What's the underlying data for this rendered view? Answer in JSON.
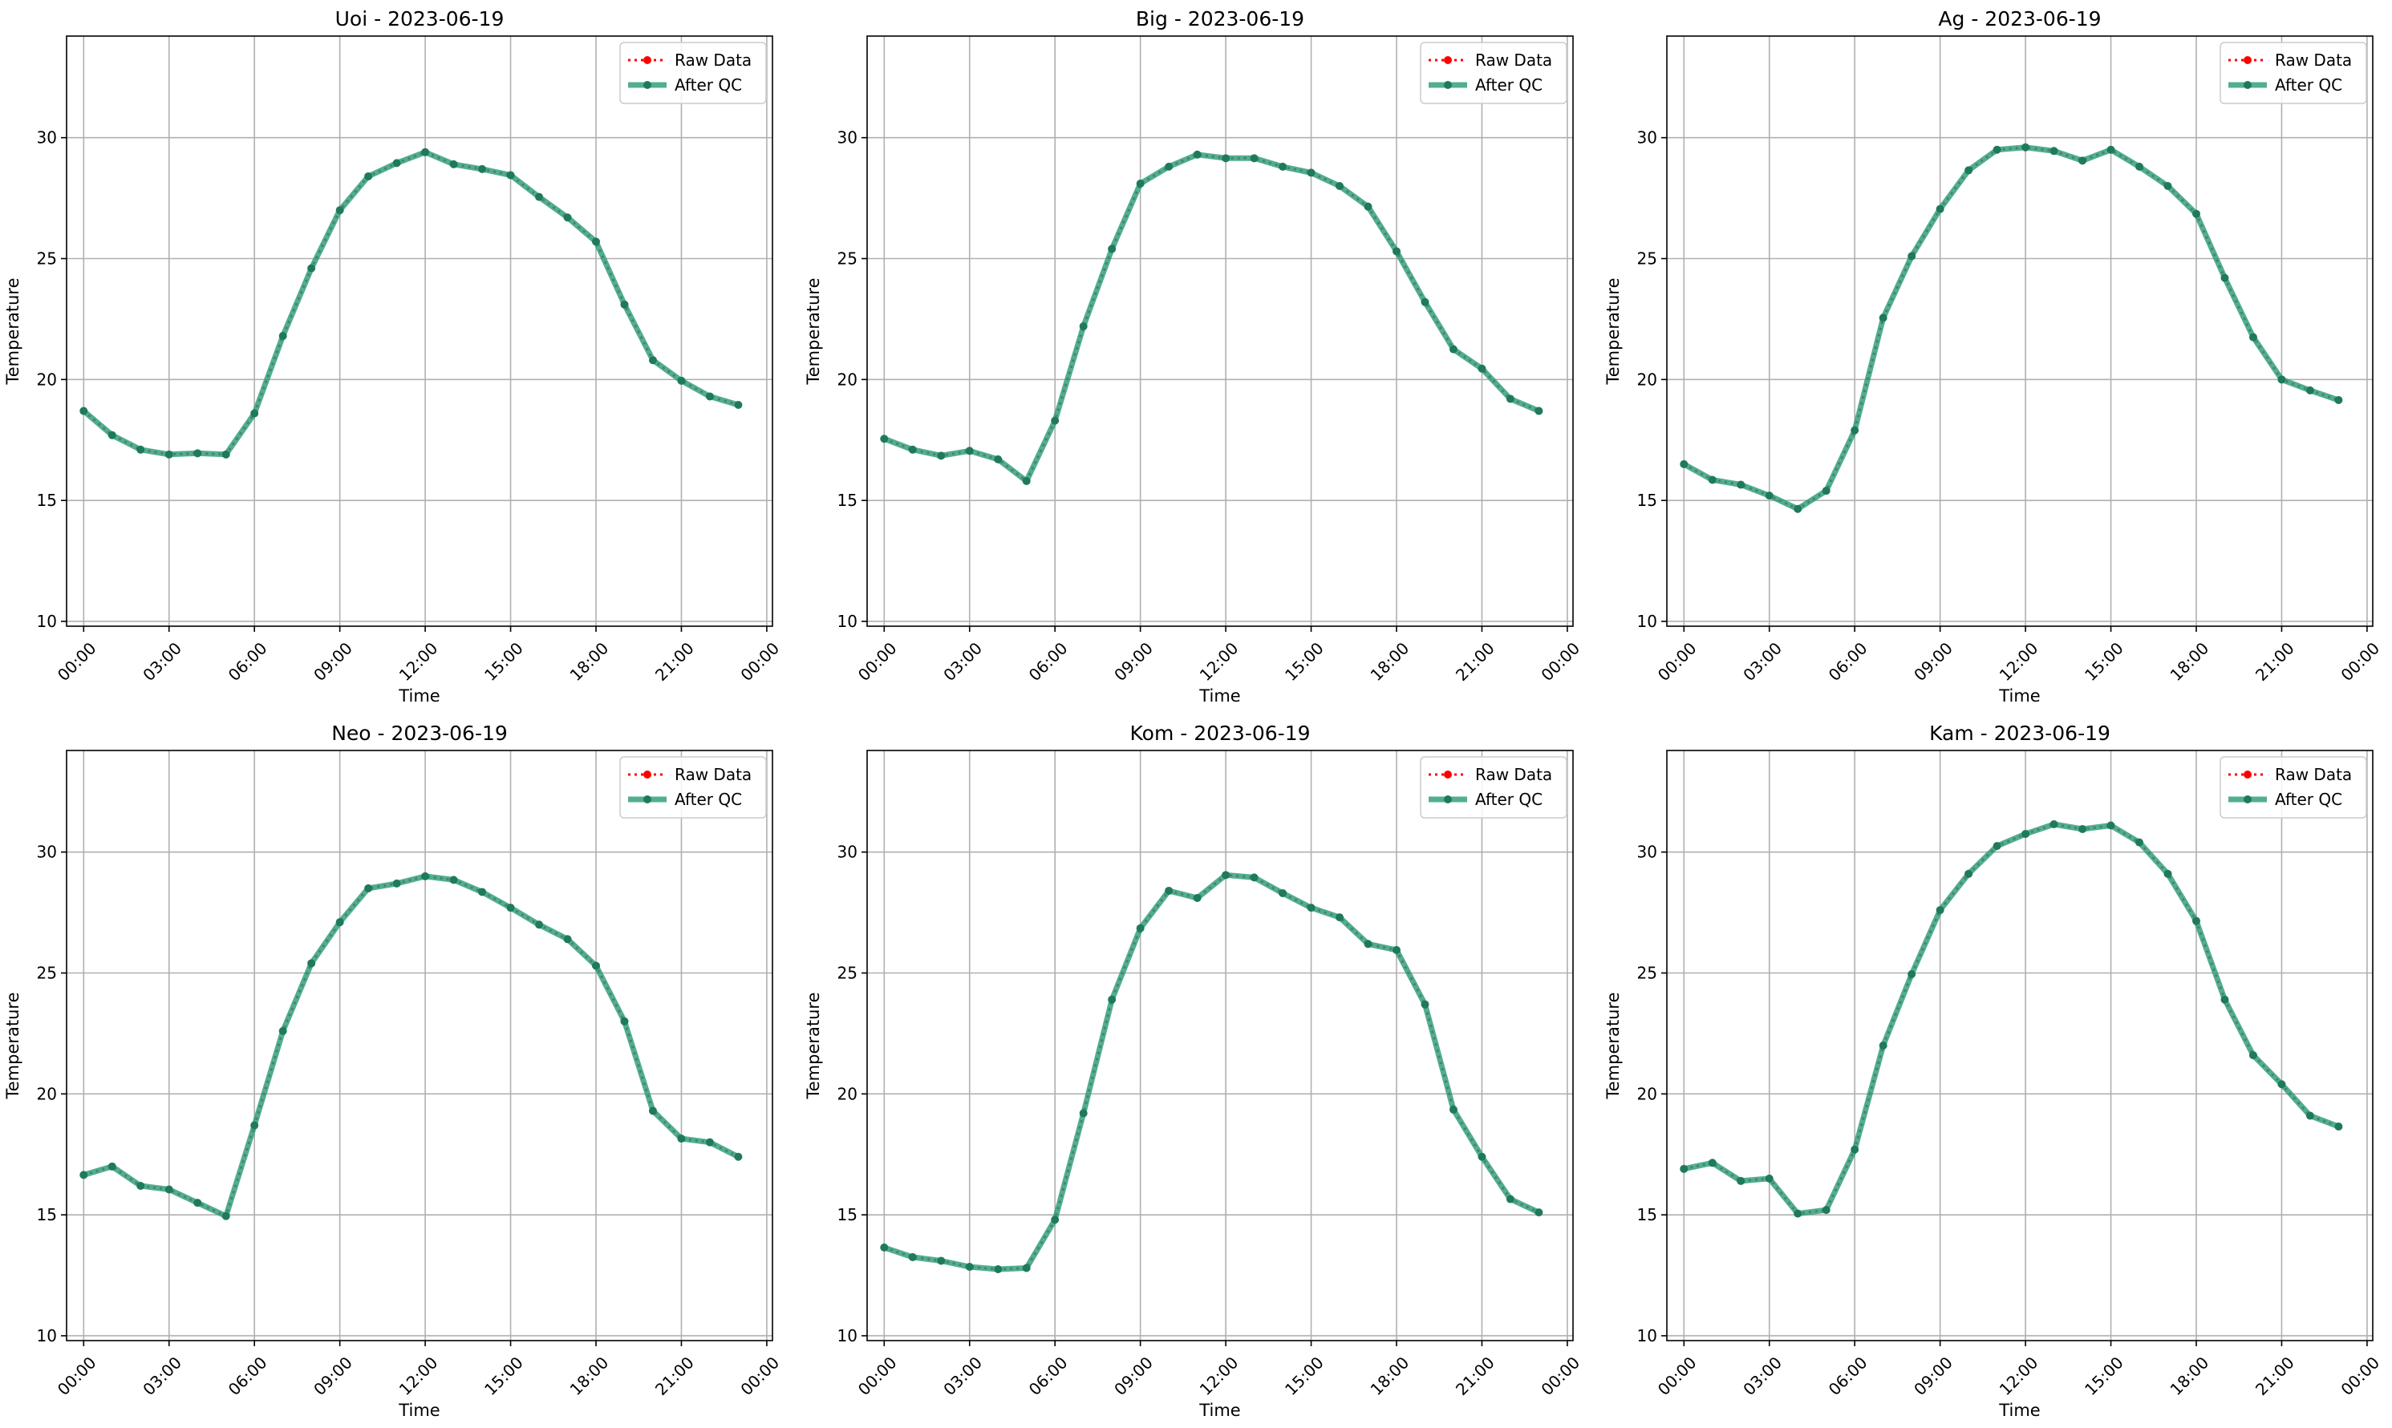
{
  "colors": {
    "raw": "#ff0000",
    "after_qc": "#2a9d78",
    "after_qc_marker": "#1f7a5c",
    "grid": "#b0b0b0",
    "axes": "#000000",
    "legend_border": "#cccccc"
  },
  "legend": {
    "placement": "upper right",
    "entries": [
      "Raw Data",
      "After QC"
    ]
  },
  "chart_data": [
    {
      "type": "line",
      "title": "Uoi - 2023-06-19",
      "xlabel": "Time",
      "ylabel": "Temperature",
      "x_hours": [
        0,
        1,
        2,
        3,
        4,
        5,
        6,
        7,
        8,
        9,
        10,
        11,
        12,
        13,
        14,
        15,
        16,
        17,
        18,
        19,
        20,
        21,
        22,
        23
      ],
      "xlim_hours": [
        -0.6,
        24.2
      ],
      "ylim": [
        9.8,
        34.2
      ],
      "xticks": [
        "00:00",
        "03:00",
        "06:00",
        "09:00",
        "12:00",
        "15:00",
        "18:00",
        "21:00",
        "00:00"
      ],
      "yticks": [
        "10",
        "15",
        "20",
        "25",
        "30"
      ],
      "grid": true,
      "legend_placement": "upper right",
      "series": [
        {
          "name": "Raw Data",
          "style": "dotted",
          "values": [
            18.7,
            17.7,
            17.1,
            16.9,
            16.95,
            16.9,
            18.6,
            21.8,
            24.6,
            27.0,
            28.4,
            28.95,
            29.4,
            28.9,
            28.7,
            28.45,
            27.55,
            26.7,
            25.7,
            23.1,
            20.8,
            19.95,
            19.3,
            18.95
          ]
        },
        {
          "name": "After QC",
          "style": "solid",
          "values": [
            18.7,
            17.7,
            17.1,
            16.9,
            16.95,
            16.9,
            18.6,
            21.8,
            24.6,
            27.0,
            28.4,
            28.95,
            29.4,
            28.9,
            28.7,
            28.45,
            27.55,
            26.7,
            25.7,
            23.1,
            20.8,
            19.95,
            19.3,
            18.95
          ]
        }
      ]
    },
    {
      "type": "line",
      "title": "Big - 2023-06-19",
      "xlabel": "Time",
      "ylabel": "Temperature",
      "x_hours": [
        0,
        1,
        2,
        3,
        4,
        5,
        6,
        7,
        8,
        9,
        10,
        11,
        12,
        13,
        14,
        15,
        16,
        17,
        18,
        19,
        20,
        21,
        22,
        23
      ],
      "xlim_hours": [
        -0.6,
        24.2
      ],
      "ylim": [
        9.8,
        34.2
      ],
      "xticks": [
        "00:00",
        "03:00",
        "06:00",
        "09:00",
        "12:00",
        "15:00",
        "18:00",
        "21:00",
        "00:00"
      ],
      "yticks": [
        "10",
        "15",
        "20",
        "25",
        "30"
      ],
      "grid": true,
      "legend_placement": "upper right",
      "series": [
        {
          "name": "Raw Data",
          "style": "dotted",
          "values": [
            17.55,
            17.1,
            16.85,
            17.05,
            16.7,
            15.8,
            18.3,
            22.2,
            25.4,
            28.1,
            28.8,
            29.3,
            29.15,
            29.15,
            28.8,
            28.55,
            28.0,
            27.15,
            25.3,
            23.2,
            21.25,
            20.45,
            19.2,
            18.7
          ]
        },
        {
          "name": "After QC",
          "style": "solid",
          "values": [
            17.55,
            17.1,
            16.85,
            17.05,
            16.7,
            15.8,
            18.3,
            22.2,
            25.4,
            28.1,
            28.8,
            29.3,
            29.15,
            29.15,
            28.8,
            28.55,
            28.0,
            27.15,
            25.3,
            23.2,
            21.25,
            20.45,
            19.2,
            18.7
          ]
        }
      ]
    },
    {
      "type": "line",
      "title": "Ag - 2023-06-19",
      "xlabel": "Time",
      "ylabel": "Temperature",
      "x_hours": [
        0,
        1,
        2,
        3,
        4,
        5,
        6,
        7,
        8,
        9,
        10,
        11,
        12,
        13,
        14,
        15,
        16,
        17,
        18,
        19,
        20,
        21,
        22,
        23
      ],
      "xlim_hours": [
        -0.6,
        24.2
      ],
      "ylim": [
        9.8,
        34.2
      ],
      "xticks": [
        "00:00",
        "03:00",
        "06:00",
        "09:00",
        "12:00",
        "15:00",
        "18:00",
        "21:00",
        "00:00"
      ],
      "yticks": [
        "10",
        "15",
        "20",
        "25",
        "30"
      ],
      "grid": true,
      "legend_placement": "upper right",
      "series": [
        {
          "name": "Raw Data",
          "style": "dotted",
          "values": [
            16.5,
            15.85,
            15.65,
            15.2,
            14.65,
            15.4,
            17.9,
            22.55,
            25.1,
            27.05,
            28.65,
            29.5,
            29.6,
            29.45,
            29.05,
            29.5,
            28.8,
            28.0,
            26.85,
            24.2,
            21.75,
            20.0,
            19.55,
            19.15
          ]
        },
        {
          "name": "After QC",
          "style": "solid",
          "values": [
            16.5,
            15.85,
            15.65,
            15.2,
            14.65,
            15.4,
            17.9,
            22.55,
            25.1,
            27.05,
            28.65,
            29.5,
            29.6,
            29.45,
            29.05,
            29.5,
            28.8,
            28.0,
            26.85,
            24.2,
            21.75,
            20.0,
            19.55,
            19.15
          ]
        }
      ]
    },
    {
      "type": "line",
      "title": "Neo - 2023-06-19",
      "xlabel": "Time",
      "ylabel": "Temperature",
      "x_hours": [
        0,
        1,
        2,
        3,
        4,
        5,
        6,
        7,
        8,
        9,
        10,
        11,
        12,
        13,
        14,
        15,
        16,
        17,
        18,
        19,
        20,
        21,
        22,
        23
      ],
      "xlim_hours": [
        -0.6,
        24.2
      ],
      "ylim": [
        9.8,
        34.2
      ],
      "xticks": [
        "00:00",
        "03:00",
        "06:00",
        "09:00",
        "12:00",
        "15:00",
        "18:00",
        "21:00",
        "00:00"
      ],
      "yticks": [
        "10",
        "15",
        "20",
        "25",
        "30"
      ],
      "grid": true,
      "legend_placement": "upper right",
      "series": [
        {
          "name": "Raw Data",
          "style": "dotted",
          "values": [
            16.65,
            17.0,
            16.2,
            16.05,
            15.5,
            14.95,
            18.7,
            22.6,
            25.4,
            27.1,
            28.5,
            28.7,
            29.0,
            28.85,
            28.35,
            27.7,
            27.0,
            26.4,
            25.3,
            23.0,
            19.3,
            18.15,
            18.0,
            17.4
          ]
        },
        {
          "name": "After QC",
          "style": "solid",
          "values": [
            16.65,
            17.0,
            16.2,
            16.05,
            15.5,
            14.95,
            18.7,
            22.6,
            25.4,
            27.1,
            28.5,
            28.7,
            29.0,
            28.85,
            28.35,
            27.7,
            27.0,
            26.4,
            25.3,
            23.0,
            19.3,
            18.15,
            18.0,
            17.4
          ]
        }
      ]
    },
    {
      "type": "line",
      "title": "Kom - 2023-06-19",
      "xlabel": "Time",
      "ylabel": "Temperature",
      "x_hours": [
        0,
        1,
        2,
        3,
        4,
        5,
        6,
        7,
        8,
        9,
        10,
        11,
        12,
        13,
        14,
        15,
        16,
        17,
        18,
        19,
        20,
        21,
        22,
        23
      ],
      "xlim_hours": [
        -0.6,
        24.2
      ],
      "ylim": [
        9.8,
        34.2
      ],
      "xticks": [
        "00:00",
        "03:00",
        "06:00",
        "09:00",
        "12:00",
        "15:00",
        "18:00",
        "21:00",
        "00:00"
      ],
      "yticks": [
        "10",
        "15",
        "20",
        "25",
        "30"
      ],
      "grid": true,
      "legend_placement": "upper right",
      "series": [
        {
          "name": "Raw Data",
          "style": "dotted",
          "values": [
            13.65,
            13.25,
            13.1,
            12.85,
            12.75,
            12.8,
            14.8,
            19.2,
            23.9,
            26.85,
            28.4,
            28.1,
            29.05,
            28.95,
            28.3,
            27.7,
            27.3,
            26.2,
            25.95,
            23.7,
            19.35,
            17.4,
            15.65,
            15.1
          ]
        },
        {
          "name": "After QC",
          "style": "solid",
          "values": [
            13.65,
            13.25,
            13.1,
            12.85,
            12.75,
            12.8,
            14.8,
            19.2,
            23.9,
            26.85,
            28.4,
            28.1,
            29.05,
            28.95,
            28.3,
            27.7,
            27.3,
            26.2,
            25.95,
            23.7,
            19.35,
            17.4,
            15.65,
            15.1
          ]
        }
      ]
    },
    {
      "type": "line",
      "title": "Kam - 2023-06-19",
      "xlabel": "Time",
      "ylabel": "Temperature",
      "x_hours": [
        0,
        1,
        2,
        3,
        4,
        5,
        6,
        7,
        8,
        9,
        10,
        11,
        12,
        13,
        14,
        15,
        16,
        17,
        18,
        19,
        20,
        21,
        22,
        23
      ],
      "xlim_hours": [
        -0.6,
        24.2
      ],
      "ylim": [
        9.8,
        34.2
      ],
      "xticks": [
        "00:00",
        "03:00",
        "06:00",
        "09:00",
        "12:00",
        "15:00",
        "18:00",
        "21:00",
        "00:00"
      ],
      "yticks": [
        "10",
        "15",
        "20",
        "25",
        "30"
      ],
      "grid": true,
      "legend_placement": "upper right",
      "series": [
        {
          "name": "Raw Data",
          "style": "dotted",
          "values": [
            16.9,
            17.15,
            16.4,
            16.5,
            15.05,
            15.2,
            17.7,
            22.0,
            24.95,
            27.6,
            29.1,
            30.25,
            30.75,
            31.15,
            30.95,
            31.1,
            30.4,
            29.1,
            27.15,
            23.9,
            21.6,
            20.4,
            19.1,
            18.65
          ]
        },
        {
          "name": "After QC",
          "style": "solid",
          "values": [
            16.9,
            17.15,
            16.4,
            16.5,
            15.05,
            15.2,
            17.7,
            22.0,
            24.95,
            27.6,
            29.1,
            30.25,
            30.75,
            31.15,
            30.95,
            31.1,
            30.4,
            29.1,
            27.15,
            23.9,
            21.6,
            20.4,
            19.1,
            18.65
          ]
        }
      ]
    }
  ]
}
